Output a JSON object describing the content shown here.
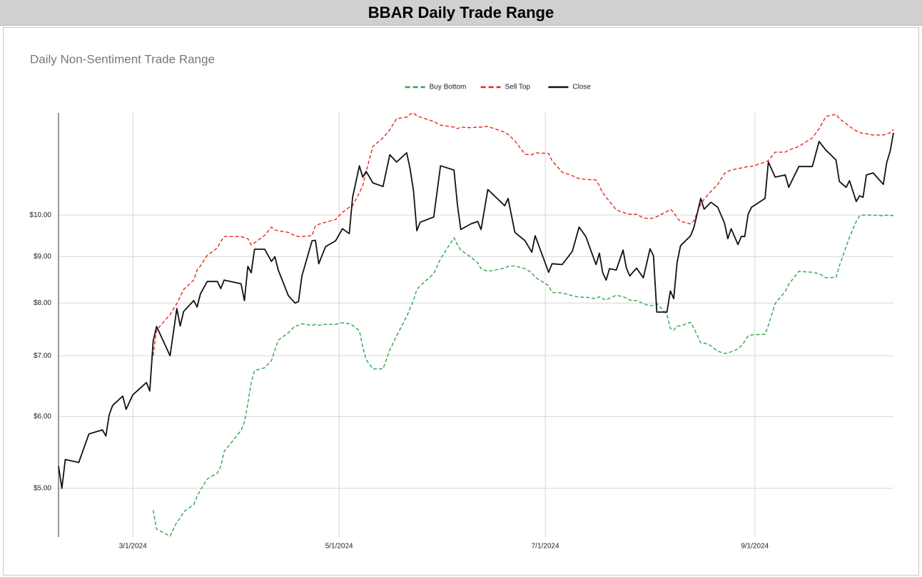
{
  "header": {
    "title": "BBAR Daily Trade Range"
  },
  "chart_data": {
    "type": "line",
    "title": "Daily Non-Sentiment Trade Range",
    "x": [
      "2024-02-08",
      "2024-02-09",
      "2024-02-10",
      "2024-02-14",
      "2024-02-17",
      "2024-02-21",
      "2024-02-22",
      "2024-02-23",
      "2024-02-24",
      "2024-02-27",
      "2024-02-28",
      "2024-03-01",
      "2024-03-05",
      "2024-03-06",
      "2024-03-07",
      "2024-03-08",
      "2024-03-12",
      "2024-03-14",
      "2024-03-15",
      "2024-03-16",
      "2024-03-19",
      "2024-03-20",
      "2024-03-21",
      "2024-03-23",
      "2024-03-26",
      "2024-03-27",
      "2024-03-28",
      "2024-04-02",
      "2024-04-03",
      "2024-04-04",
      "2024-04-05",
      "2024-04-06",
      "2024-04-09",
      "2024-04-11",
      "2024-04-12",
      "2024-04-13",
      "2024-04-16",
      "2024-04-18",
      "2024-04-19",
      "2024-04-20",
      "2024-04-23",
      "2024-04-24",
      "2024-04-25",
      "2024-04-27",
      "2024-04-30",
      "2024-05-02",
      "2024-05-04",
      "2024-05-05",
      "2024-05-07",
      "2024-05-08",
      "2024-05-09",
      "2024-05-11",
      "2024-05-14",
      "2024-05-16",
      "2024-05-18",
      "2024-05-21",
      "2024-05-22",
      "2024-05-23",
      "2024-05-24",
      "2024-05-25",
      "2024-05-29",
      "2024-05-31",
      "2024-06-04",
      "2024-06-05",
      "2024-06-06",
      "2024-06-09",
      "2024-06-11",
      "2024-06-12",
      "2024-06-14",
      "2024-06-19",
      "2024-06-20",
      "2024-06-22",
      "2024-06-25",
      "2024-06-27",
      "2024-06-28",
      "2024-07-02",
      "2024-07-03",
      "2024-07-06",
      "2024-07-09",
      "2024-07-11",
      "2024-07-13",
      "2024-07-16",
      "2024-07-17",
      "2024-07-18",
      "2024-07-19",
      "2024-07-20",
      "2024-07-22",
      "2024-07-24",
      "2024-07-25",
      "2024-07-26",
      "2024-07-28",
      "2024-07-30",
      "2024-08-01",
      "2024-08-02",
      "2024-08-03",
      "2024-08-06",
      "2024-08-07",
      "2024-08-08",
      "2024-08-09",
      "2024-08-10",
      "2024-08-13",
      "2024-08-14",
      "2024-08-16",
      "2024-08-17",
      "2024-08-19",
      "2024-08-21",
      "2024-08-23",
      "2024-08-24",
      "2024-08-25",
      "2024-08-27",
      "2024-08-28",
      "2024-08-29",
      "2024-08-30",
      "2024-08-31",
      "2024-09-04",
      "2024-09-05",
      "2024-09-07",
      "2024-09-10",
      "2024-09-11",
      "2024-09-14",
      "2024-09-18",
      "2024-09-20",
      "2024-09-22",
      "2024-09-25",
      "2024-09-26",
      "2024-09-28",
      "2024-09-29",
      "2024-10-01",
      "2024-10-02",
      "2024-10-03",
      "2024-10-04",
      "2024-10-06",
      "2024-10-09",
      "2024-10-10",
      "2024-10-11",
      "2024-10-12"
    ],
    "series": [
      {
        "name": "Buy Bottom",
        "color": "#2ea64a",
        "dashed": true,
        "values": [
          null,
          null,
          null,
          null,
          null,
          null,
          null,
          null,
          null,
          null,
          null,
          null,
          null,
          null,
          4.73,
          4.51,
          4.43,
          4.59,
          4.64,
          4.71,
          4.8,
          4.9,
          4.98,
          5.12,
          5.2,
          5.29,
          5.49,
          5.79,
          5.92,
          6.2,
          6.54,
          6.74,
          6.79,
          6.91,
          7.1,
          7.28,
          7.42,
          7.55,
          7.56,
          7.59,
          7.56,
          7.58,
          7.56,
          7.58,
          7.58,
          7.61,
          7.59,
          7.56,
          7.46,
          7.16,
          6.93,
          6.77,
          6.77,
          7.1,
          7.36,
          7.73,
          7.89,
          8.06,
          8.28,
          8.36,
          8.62,
          8.95,
          9.44,
          9.28,
          9.15,
          8.99,
          8.86,
          8.73,
          8.67,
          8.74,
          8.78,
          8.79,
          8.73,
          8.64,
          8.54,
          8.36,
          8.22,
          8.21,
          8.15,
          8.12,
          8.12,
          8.09,
          8.13,
          8.09,
          8.06,
          8.1,
          8.16,
          8.13,
          8.1,
          8.06,
          8.05,
          7.99,
          7.94,
          7.96,
          7.99,
          7.77,
          7.5,
          7.47,
          7.55,
          7.55,
          7.62,
          7.5,
          7.23,
          7.23,
          7.18,
          7.08,
          7.04,
          7.05,
          7.07,
          7.12,
          7.18,
          7.26,
          7.36,
          7.38,
          7.39,
          7.56,
          7.99,
          8.24,
          8.39,
          8.67,
          8.65,
          8.62,
          8.53,
          8.54,
          8.79,
          9.23,
          9.45,
          9.84,
          9.98,
          10.0,
          10.0,
          10.0,
          9.98,
          10.0,
          9.98,
          10.0
        ]
      },
      {
        "name": "Sell Top",
        "color": "#e8261c",
        "dashed": true,
        "values": [
          null,
          null,
          null,
          null,
          null,
          null,
          null,
          null,
          null,
          null,
          null,
          null,
          null,
          null,
          7.0,
          7.47,
          7.77,
          7.99,
          8.13,
          8.28,
          8.48,
          8.7,
          8.79,
          9.03,
          9.2,
          9.35,
          9.47,
          9.47,
          9.44,
          9.42,
          9.27,
          9.32,
          9.5,
          9.7,
          9.63,
          9.61,
          9.57,
          9.49,
          9.47,
          9.47,
          9.49,
          9.73,
          9.77,
          9.82,
          9.89,
          10.07,
          10.2,
          10.24,
          10.58,
          10.77,
          11.17,
          11.9,
          12.16,
          12.41,
          12.77,
          12.82,
          12.91,
          12.96,
          12.86,
          12.82,
          12.68,
          12.56,
          12.5,
          12.45,
          12.5,
          12.48,
          12.5,
          12.5,
          12.52,
          12.34,
          12.27,
          12.07,
          11.67,
          11.65,
          11.71,
          11.69,
          11.48,
          11.15,
          11.05,
          10.97,
          10.95,
          10.93,
          10.77,
          10.58,
          10.46,
          10.35,
          10.13,
          10.07,
          10.04,
          10.02,
          10.02,
          9.93,
          9.91,
          9.93,
          9.96,
          10.09,
          10.15,
          10.07,
          9.93,
          9.84,
          9.78,
          9.86,
          10.29,
          10.41,
          10.62,
          10.81,
          11.11,
          11.17,
          11.21,
          11.25,
          11.27,
          11.29,
          11.31,
          11.31,
          11.44,
          11.48,
          11.73,
          11.73,
          11.79,
          11.9,
          12.16,
          12.45,
          12.84,
          12.91,
          12.77,
          12.61,
          12.52,
          12.38,
          12.34,
          12.29,
          12.29,
          12.25,
          12.25,
          12.29,
          12.32,
          12.43
        ]
      },
      {
        "name": "Close",
        "color": "#111111",
        "dashed": false,
        "values": [
          5.29,
          5.0,
          5.38,
          5.34,
          5.74,
          5.8,
          5.71,
          6.03,
          6.17,
          6.32,
          6.11,
          6.34,
          6.54,
          6.4,
          7.26,
          7.54,
          7.0,
          7.89,
          7.55,
          7.83,
          8.05,
          7.92,
          8.19,
          8.45,
          8.45,
          8.3,
          8.48,
          8.4,
          8.05,
          8.78,
          8.64,
          9.17,
          9.17,
          8.89,
          9.0,
          8.7,
          8.15,
          8.0,
          8.03,
          8.57,
          9.37,
          9.38,
          8.84,
          9.23,
          9.37,
          9.66,
          9.54,
          10.46,
          11.33,
          11.01,
          11.17,
          10.85,
          10.75,
          11.65,
          11.44,
          11.71,
          11.25,
          10.64,
          9.61,
          9.82,
          9.95,
          11.33,
          11.21,
          10.28,
          9.64,
          9.78,
          9.84,
          9.64,
          10.67,
          10.24,
          10.43,
          9.57,
          9.37,
          9.1,
          9.49,
          8.65,
          8.84,
          8.82,
          9.12,
          9.7,
          9.47,
          8.82,
          9.08,
          8.64,
          8.48,
          8.73,
          8.7,
          9.15,
          8.74,
          8.57,
          8.74,
          8.53,
          9.18,
          9.02,
          7.82,
          7.82,
          8.25,
          8.09,
          8.87,
          9.25,
          9.49,
          9.7,
          10.43,
          10.15,
          10.33,
          10.2,
          9.8,
          9.42,
          9.66,
          9.28,
          9.47,
          9.47,
          10.02,
          10.2,
          10.43,
          11.44,
          11.01,
          11.07,
          10.73,
          11.31,
          11.31,
          12.05,
          11.79,
          11.5,
          10.89,
          10.73,
          10.91,
          10.35,
          10.5,
          10.46,
          11.07,
          11.13,
          10.81,
          11.42,
          11.75,
          12.32
        ]
      }
    ],
    "xlim": [
      "2024-02-08",
      "2024-10-12"
    ],
    "xticks": [
      {
        "value": "2024-03-01",
        "label": "3/1/2024"
      },
      {
        "value": "2024-05-01",
        "label": "5/1/2024"
      },
      {
        "value": "2024-07-01",
        "label": "7/1/2024"
      },
      {
        "value": "2024-09-01",
        "label": "9/1/2024"
      }
    ],
    "ylim": [
      4.42,
      12.96
    ],
    "yticks": [
      {
        "value": 5,
        "label": "$5.00"
      },
      {
        "value": 6,
        "label": "$6.00"
      },
      {
        "value": 7,
        "label": "$7.00"
      },
      {
        "value": 8,
        "label": "$8.00"
      },
      {
        "value": 9,
        "label": "$9.00"
      },
      {
        "value": 10,
        "label": "$10.00"
      }
    ],
    "log_scale": true,
    "grid": true,
    "legend": "top"
  }
}
